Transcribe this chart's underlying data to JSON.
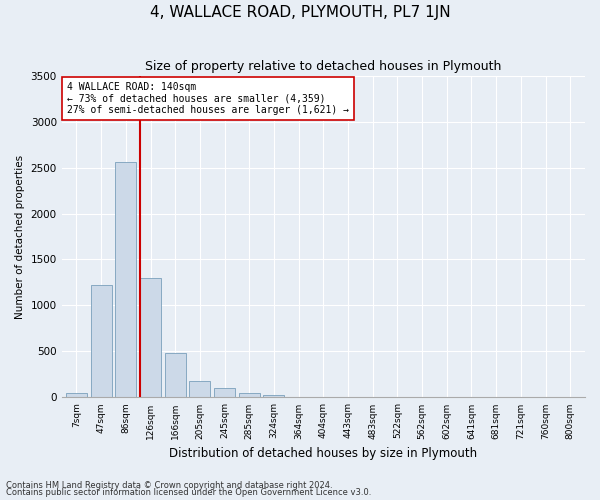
{
  "title": "4, WALLACE ROAD, PLYMOUTH, PL7 1JN",
  "subtitle": "Size of property relative to detached houses in Plymouth",
  "xlabel": "Distribution of detached houses by size in Plymouth",
  "ylabel": "Number of detached properties",
  "footnote1": "Contains HM Land Registry data © Crown copyright and database right 2024.",
  "footnote2": "Contains public sector information licensed under the Open Government Licence v3.0.",
  "categories": [
    "7sqm",
    "47sqm",
    "86sqm",
    "126sqm",
    "166sqm",
    "205sqm",
    "245sqm",
    "285sqm",
    "324sqm",
    "364sqm",
    "404sqm",
    "443sqm",
    "483sqm",
    "522sqm",
    "562sqm",
    "602sqm",
    "641sqm",
    "681sqm",
    "721sqm",
    "760sqm",
    "800sqm"
  ],
  "values": [
    50,
    1220,
    2560,
    1300,
    480,
    180,
    100,
    50,
    30,
    0,
    0,
    0,
    0,
    0,
    0,
    0,
    0,
    0,
    0,
    0,
    0
  ],
  "bar_color": "#ccd9e8",
  "bar_edge_color": "#7aa0bb",
  "vline_color": "#cc0000",
  "annotation_line1": "4 WALLACE ROAD: 140sqm",
  "annotation_line2": "← 73% of detached houses are smaller (4,359)",
  "annotation_line3": "27% of semi-detached houses are larger (1,621) →",
  "annotation_box_color": "#ffffff",
  "annotation_box_edge": "#cc0000",
  "ylim": [
    0,
    3500
  ],
  "yticks": [
    0,
    500,
    1000,
    1500,
    2000,
    2500,
    3000,
    3500
  ],
  "bg_color": "#e8eef5",
  "plot_bg_color": "#e8eef5",
  "grid_color": "#ffffff",
  "title_fontsize": 11,
  "subtitle_fontsize": 9
}
